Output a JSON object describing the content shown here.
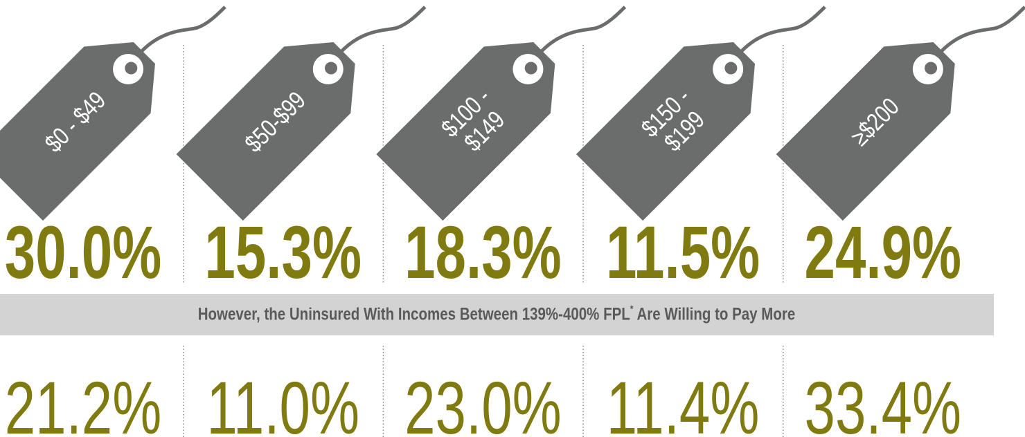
{
  "tags": [
    {
      "label": [
        "$0 - $49"
      ],
      "overall": "30.0%",
      "mid_income": "21.2%"
    },
    {
      "label": [
        "$50-$99"
      ],
      "overall": "15.3%",
      "mid_income": "11.0%"
    },
    {
      "label": [
        "$100 -",
        "$149"
      ],
      "overall": "18.3%",
      "mid_income": "23.0%"
    },
    {
      "label": [
        "$150 -",
        "$199"
      ],
      "overall": "11.5%",
      "mid_income": "11.4%"
    },
    {
      "label": [
        "≥$200"
      ],
      "overall": "24.9%",
      "mid_income": "33.4%"
    }
  ],
  "banner": {
    "text": "However, the Uninsured With Incomes Between 139%-400% FPL",
    "mark": "*",
    "tail": " Are Willing to Pay More"
  }
}
